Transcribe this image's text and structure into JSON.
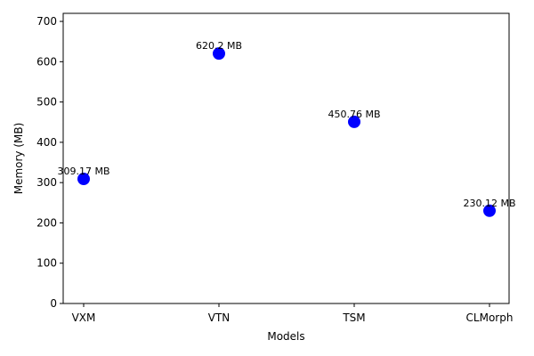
{
  "chart_data": {
    "type": "scatter",
    "categories": [
      "VXM",
      "VTN",
      "TSM",
      "CLMorph"
    ],
    "values": [
      309.17,
      620.2,
      450.76,
      230.12
    ],
    "data_labels": [
      "309.17 MB",
      "620.2 MB",
      "450.76 MB",
      "230.12 MB"
    ],
    "xlabel": "Models",
    "ylabel": "Memory (MB)",
    "ylim": [
      0,
      720
    ],
    "yticks": [
      0,
      100,
      200,
      300,
      400,
      500,
      600,
      700
    ],
    "grid": false,
    "marker_color": "#0000ff"
  }
}
